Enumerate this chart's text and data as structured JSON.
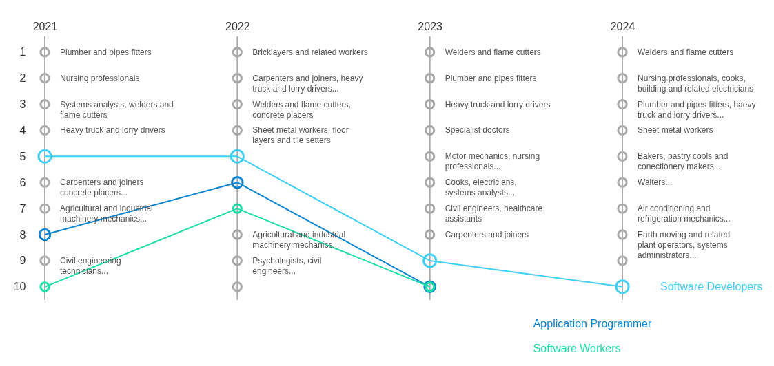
{
  "chart_data": {
    "type": "line",
    "categories": [
      "2021",
      "2022",
      "2023",
      "2024"
    ],
    "ylim": [
      13.04,
      -1
    ],
    "yticks": [
      1,
      2,
      3,
      4,
      5,
      6,
      7,
      8,
      9,
      10
    ],
    "grid": "x",
    "legend": false,
    "marker": "circle",
    "line_style": "solid",
    "series": [
      {
        "type": "scatter",
        "color": "#aaaaaa",
        "values": [
          1,
          1,
          1,
          1
        ]
      },
      {
        "type": "scatter",
        "color": "#aaaaaa",
        "values": [
          2,
          2,
          2,
          2
        ]
      },
      {
        "type": "scatter",
        "color": "#aaaaaa",
        "values": [
          3,
          3,
          3,
          3
        ]
      },
      {
        "type": "scatter",
        "color": "#aaaaaa",
        "values": [
          4,
          4,
          4,
          4
        ]
      },
      {
        "type": "scatter",
        "color": "#aaaaaa",
        "values": [
          null,
          null,
          5,
          5
        ]
      },
      {
        "type": "scatter",
        "color": "#aaaaaa",
        "values": [
          6,
          null,
          6,
          6
        ]
      },
      {
        "type": "scatter",
        "color": "#aaaaaa",
        "values": [
          7,
          null,
          7,
          7
        ]
      },
      {
        "type": "scatter",
        "color": "#aaaaaa",
        "values": [
          null,
          8,
          8,
          8
        ]
      },
      {
        "type": "scatter",
        "color": "#aaaaaa",
        "values": [
          9,
          9,
          null,
          9
        ]
      },
      {
        "type": "scatter",
        "color": "#aaaaaa",
        "values": [
          null,
          10,
          null,
          null
        ]
      },
      {
        "name": "Software Developers",
        "color": "#3fcff5",
        "values": [
          5,
          5,
          9,
          10
        ]
      },
      {
        "name": "Application Programmer",
        "color": "#0a84d0",
        "values": [
          8,
          6,
          10,
          null
        ]
      },
      {
        "name": "Software Workers",
        "color": "#19dfa6",
        "values": [
          10,
          7,
          10,
          null
        ]
      }
    ],
    "annotations": [
      {
        "text": "Plumber and pipes fitters",
        "x": "2021",
        "y": 1
      },
      {
        "text": "Nursing professionals",
        "x": "2021",
        "y": 2
      },
      {
        "text": "Systems analysts, welders and\nflame cutters",
        "x": "2021",
        "y": 3
      },
      {
        "text": "Heavy truck and lorry drivers",
        "x": "2021",
        "y": 4
      },
      {
        "text": "Carpenters and joiners\nconcrete placers...",
        "x": "2021",
        "y": 6
      },
      {
        "text": "Agricultural and industrial\nmachinery mechanics...",
        "x": "2021",
        "y": 7
      },
      {
        "text": "Civil engineering\ntechnicians...",
        "x": "2021",
        "y": 9
      },
      {
        "text": "Bricklayers and related workers",
        "x": "2022",
        "y": 1
      },
      {
        "text": "Carpenters and joiners, heavy\ntruck and lorry drivers...",
        "x": "2022",
        "y": 2
      },
      {
        "text": "Welders and flame cutters,\nconcrete placers",
        "x": "2022",
        "y": 3
      },
      {
        "text": "Sheet metal workers, floor\nlayers and tile setters",
        "x": "2022",
        "y": 4
      },
      {
        "text": "Agricultural and industrial\nmachinery mechanics...",
        "x": "2022",
        "y": 8
      },
      {
        "text": "Psychologists, civil\nengineers...",
        "x": "2022",
        "y": 9
      },
      {
        "text": "Welders and flame cutters",
        "x": "2023",
        "y": 1
      },
      {
        "text": "Plumber and pipes fitters",
        "x": "2023",
        "y": 2
      },
      {
        "text": "Heavy truck and lorry drivers",
        "x": "2023",
        "y": 3
      },
      {
        "text": "Specialist doctors",
        "x": "2023",
        "y": 4
      },
      {
        "text": "Motor mechanics, nursing\nprofessionals...",
        "x": "2023",
        "y": 5
      },
      {
        "text": "Cooks, electricians,\nsystems analysts...",
        "x": "2023",
        "y": 6
      },
      {
        "text": "Civil engineers, healthcare\nassistants",
        "x": "2023",
        "y": 7
      },
      {
        "text": "Carpenters and joiners",
        "x": "2023",
        "y": 8
      },
      {
        "text": "Welders and flame cutters",
        "x": "2024",
        "y": 1
      },
      {
        "text": "Nursing professionals, cooks,\nbuilding and related electricians",
        "x": "2024",
        "y": 2
      },
      {
        "text": "Plumber and pipes fitters, haevy\ntruck and lorry drivers...",
        "x": "2024",
        "y": 3
      },
      {
        "text": "Sheet metal workers",
        "x": "2024",
        "y": 4
      },
      {
        "text": "Bakers, pastry cools and\nconectionery makers...",
        "x": "2024",
        "y": 5
      },
      {
        "text": "Waiters...",
        "x": "2024",
        "y": 6
      },
      {
        "text": "Air conditioning and\nrefrigeration mechanics...",
        "x": "2024",
        "y": 7
      },
      {
        "text": "Earth moving and related\nplant operators, systems\nadministrators...",
        "x": "2024",
        "y": 8
      }
    ]
  }
}
